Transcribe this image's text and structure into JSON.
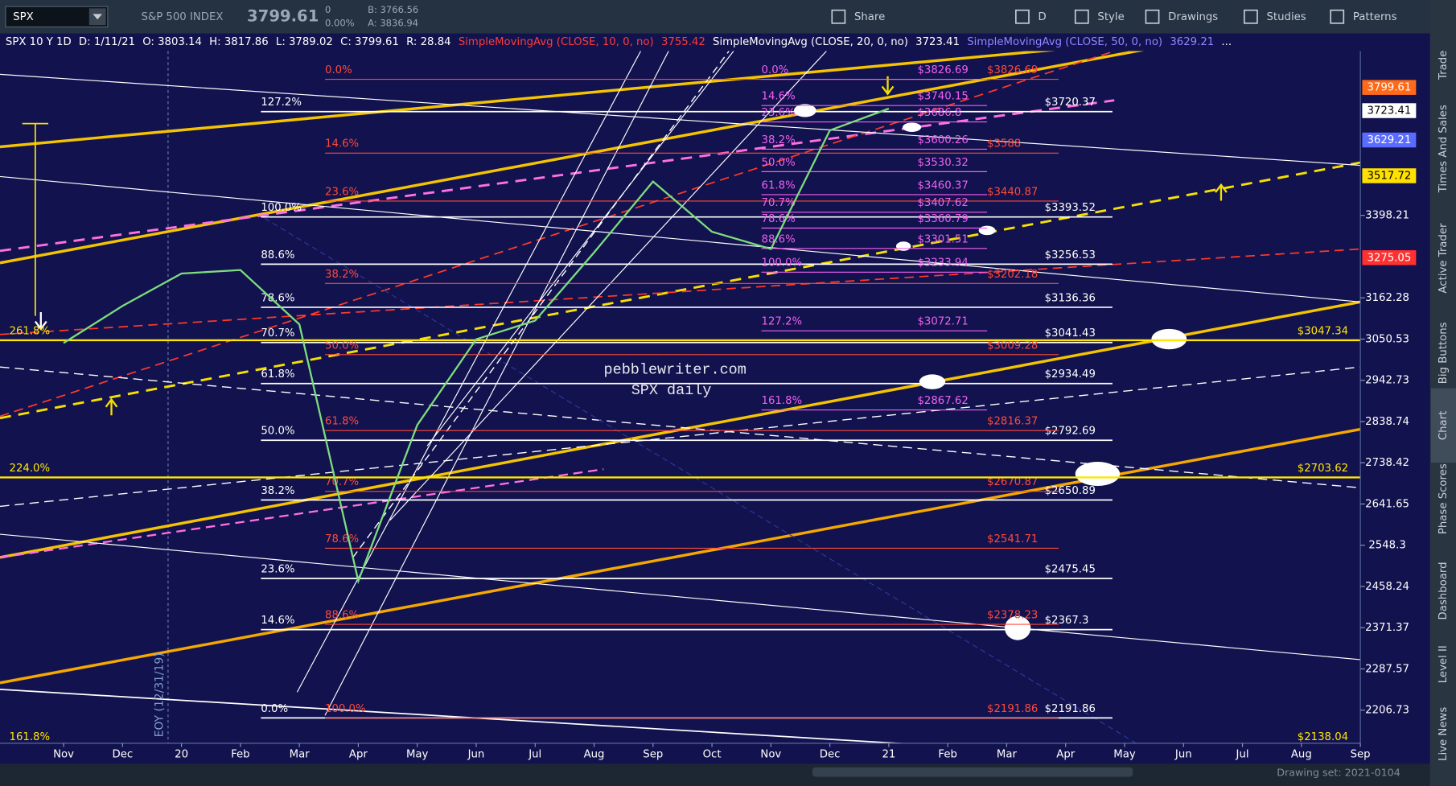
{
  "toolbar": {
    "symbol": "SPX",
    "description": "S&P 500 INDEX",
    "last": "3799.61",
    "change": "0",
    "change_pct": "0.00%",
    "bid": "B: 3766.56",
    "ask": "A: 3836.94",
    "buttons": [
      "Share",
      "D",
      "Style",
      "Drawings",
      "Studies",
      "Patterns"
    ]
  },
  "header": {
    "items": [
      {
        "text": "SPX 10 Y 1D",
        "color": "#ffffff"
      },
      {
        "text": "D: 1/11/21",
        "color": "#ffffff"
      },
      {
        "text": "O: 3803.14",
        "color": "#ffffff"
      },
      {
        "text": "H: 3817.86",
        "color": "#ffffff"
      },
      {
        "text": "L: 3789.02",
        "color": "#ffffff"
      },
      {
        "text": "C: 3799.61",
        "color": "#ffffff"
      },
      {
        "text": "R: 28.84",
        "color": "#ffffff"
      },
      {
        "text": "SimpleMovingAvg (CLOSE, 10, 0, no)",
        "color": "#ff3b3b"
      },
      {
        "text": "3755.42",
        "color": "#ff3b3b"
      },
      {
        "text": "SimpleMovingAvg (CLOSE, 20, 0, no)",
        "color": "#ffffff"
      },
      {
        "text": "3723.41",
        "color": "#ffffff"
      },
      {
        "text": "SimpleMovingAvg (CLOSE, 50, 0, no)",
        "color": "#8f86ff"
      },
      {
        "text": "3629.21",
        "color": "#8f86ff"
      },
      {
        "text": "...",
        "color": "#ffffff"
      }
    ]
  },
  "sidebar": {
    "tabs": [
      "Trade",
      "Times And Sales",
      "Active Trader",
      "Big Buttons",
      "Chart",
      "Phase Scores",
      "Dashboard",
      "Level II",
      "Live News"
    ],
    "active_index": 4
  },
  "footer": {
    "drawing_set": "Drawing set: 2021-0104"
  },
  "chart_data": {
    "type": "line",
    "watermark": [
      "pebblewriter.com",
      "SPX daily"
    ],
    "annotation": "EOY (12/31/19)",
    "log_scale": true,
    "x": [
      "2019-11",
      "2019-12",
      "2020-01",
      "2020-02",
      "2020-03",
      "2020-04",
      "2020-05",
      "2020-06",
      "2020-07",
      "2020-08",
      "2020-09",
      "2020-10",
      "2020-11",
      "2020-12",
      "2021-01"
    ],
    "series": [
      {
        "color": "#7ddc7d",
        "values": [
          3040,
          3140,
          3230,
          3240,
          3090,
          2470,
          2830,
          3050,
          3100,
          3290,
          3500,
          3350,
          3300,
          3660,
          3730
        ]
      }
    ],
    "xlim": [
      "2019-10",
      "2021-09"
    ],
    "xticks": [
      {
        "value": "2019-11",
        "label": "Nov"
      },
      {
        "value": "2019-12",
        "label": "Dec"
      },
      {
        "value": "2020-01",
        "label": "20"
      },
      {
        "value": "2020-02",
        "label": "Feb"
      },
      {
        "value": "2020-03",
        "label": "Mar"
      },
      {
        "value": "2020-04",
        "label": "Apr"
      },
      {
        "value": "2020-05",
        "label": "May"
      },
      {
        "value": "2020-06",
        "label": "Jun"
      },
      {
        "value": "2020-07",
        "label": "Jul"
      },
      {
        "value": "2020-08",
        "label": "Aug"
      },
      {
        "value": "2020-09",
        "label": "Sep"
      },
      {
        "value": "2020-10",
        "label": "Oct"
      },
      {
        "value": "2020-11",
        "label": "Nov"
      },
      {
        "value": "2020-12",
        "label": "Dec"
      },
      {
        "value": "2021-01",
        "label": "21"
      },
      {
        "value": "2021-02",
        "label": "Feb"
      },
      {
        "value": "2021-03",
        "label": "Mar"
      },
      {
        "value": "2021-04",
        "label": "Apr"
      },
      {
        "value": "2021-05",
        "label": "May"
      },
      {
        "value": "2021-06",
        "label": "Jun"
      },
      {
        "value": "2021-07",
        "label": "Jul"
      },
      {
        "value": "2021-08",
        "label": "Aug"
      },
      {
        "value": "2021-09",
        "label": "Sep"
      }
    ],
    "ylim": [
      2130,
      3922
    ],
    "yticks": [
      3398.21,
      3162.28,
      3050.53,
      2942.73,
      2838.74,
      2738.42,
      2641.65,
      2548.3,
      2458.24,
      2371.37,
      2287.57,
      2206.73
    ],
    "price_markers": [
      {
        "value": 3799.61,
        "color": "#ff6a1a",
        "text_color": "#ffffff"
      },
      {
        "value": 3723.41,
        "color": "#ffffff",
        "text_color": "#000000"
      },
      {
        "value": 3629.21,
        "color": "#5a6cff",
        "text_color": "#ffffff"
      },
      {
        "value": 3517.72,
        "color": "#ffe000",
        "text_color": "#000000"
      },
      {
        "value": 3275.05,
        "color": "#ff3030",
        "text_color": "#ffffff"
      }
    ],
    "fib_sets": [
      {
        "color": "#ffffff",
        "levels": [
          {
            "pct": "127.2%",
            "value": 3720.37,
            "value_label": "$3720.37"
          },
          {
            "pct": "100.0%",
            "value": 3393.52,
            "value_label": "$3393.52"
          },
          {
            "pct": "88.6%",
            "value": 3256.53,
            "value_label": "$3256.53"
          },
          {
            "pct": "78.6%",
            "value": 3136.36,
            "value_label": "$3136.36"
          },
          {
            "pct": "70.7%",
            "value": 3041.43,
            "value_label": "$3041.43"
          },
          {
            "pct": "61.8%",
            "value": 2934.49,
            "value_label": "$2934.49"
          },
          {
            "pct": "50.0%",
            "value": 2792.69,
            "value_label": "$2792.69"
          },
          {
            "pct": "38.2%",
            "value": 2650.89,
            "value_label": "$2650.89"
          },
          {
            "pct": "23.6%",
            "value": 2475.45,
            "value_label": "$2475.45"
          },
          {
            "pct": "14.6%",
            "value": 2367.3,
            "value_label": "$2367.3"
          },
          {
            "pct": "0.0%",
            "value": 2191.86,
            "value_label": "$2191.86"
          }
        ]
      },
      {
        "color": "#ff4a3a",
        "levels": [
          {
            "pct": "0.0%",
            "value": 3826.69,
            "value_label": "$3826.69"
          },
          {
            "pct": "14.6%",
            "value": 3588,
            "value_label": "$3588"
          },
          {
            "pct": "23.6%",
            "value": 3440.87,
            "value_label": "$3440.87"
          },
          {
            "pct": "38.2%",
            "value": 3202.18,
            "value_label": "$3202.18"
          },
          {
            "pct": "50.0%",
            "value": 3009.28,
            "value_label": "$3009.28"
          },
          {
            "pct": "61.8%",
            "value": 2816.37,
            "value_label": "$2816.37"
          },
          {
            "pct": "70.7%",
            "value": 2670.87,
            "value_label": "$2670.87"
          },
          {
            "pct": "78.6%",
            "value": 2541.71,
            "value_label": "$2541.71"
          },
          {
            "pct": "88.6%",
            "value": 2378.23,
            "value_label": "$2378.23"
          },
          {
            "pct": "100.0%",
            "value": 2191.86,
            "value_label": "$2191.86"
          }
        ]
      },
      {
        "color": "#f060f0",
        "levels": [
          {
            "pct": "0.0%",
            "value": 3826.69,
            "value_label": "$3826.69"
          },
          {
            "pct": "14.6%",
            "value": 3740.15,
            "value_label": "$3740.15"
          },
          {
            "pct": "23.6%",
            "value": 3686.8,
            "value_label": "$3686.8"
          },
          {
            "pct": "38.2%",
            "value": 3600.26,
            "value_label": "$3600.26"
          },
          {
            "pct": "50.0%",
            "value": 3530.32,
            "value_label": "$3530.32"
          },
          {
            "pct": "61.8%",
            "value": 3460.37,
            "value_label": "$3460.37"
          },
          {
            "pct": "70.7%",
            "value": 3407.62,
            "value_label": "$3407.62"
          },
          {
            "pct": "78.6%",
            "value": 3360.79,
            "value_label": "$3360.79"
          },
          {
            "pct": "88.6%",
            "value": 3301.51,
            "value_label": "$3301.51"
          },
          {
            "pct": "100.0%",
            "value": 3233.94,
            "value_label": "$3233.94"
          },
          {
            "pct": "127.2%",
            "value": 3072.71,
            "value_label": "$3072.71"
          },
          {
            "pct": "161.8%",
            "value": 2867.62,
            "value_label": "$2867.62"
          }
        ]
      },
      {
        "color": "#ffe600",
        "levels": [
          {
            "pct": "261.8%",
            "value": 3047.34,
            "value_label": "$3047.34"
          },
          {
            "pct": "224.0%",
            "value": 2703.62,
            "value_label": "$2703.62"
          },
          {
            "pct": "161.8%",
            "value": 2138.04,
            "value_label": "$2138.04"
          }
        ]
      }
    ]
  }
}
